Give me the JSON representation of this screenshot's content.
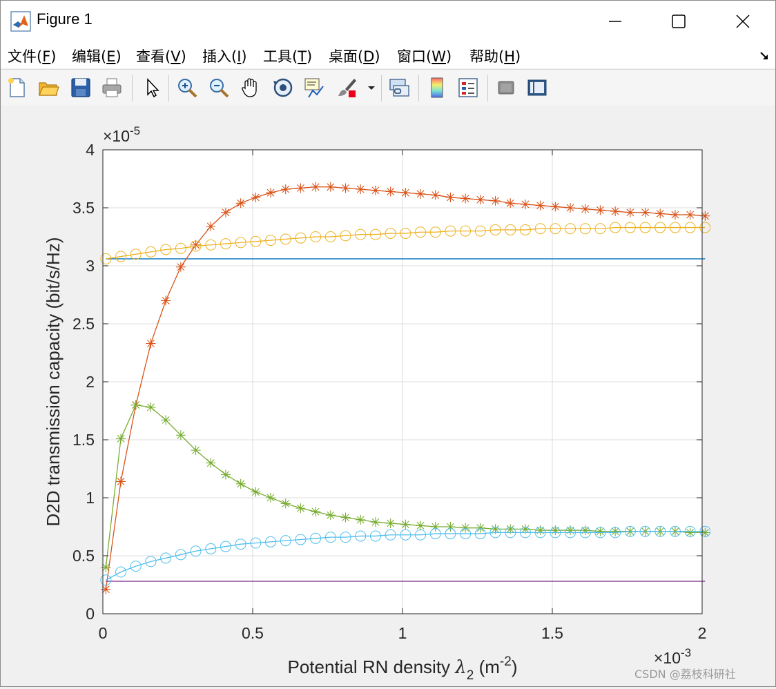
{
  "window": {
    "title": "Figure 1"
  },
  "menu": {
    "items": [
      {
        "label": "文件(",
        "key": "F",
        "tail": ")"
      },
      {
        "label": "编辑(",
        "key": "E",
        "tail": ")"
      },
      {
        "label": "查看(",
        "key": "V",
        "tail": ")"
      },
      {
        "label": "插入(",
        "key": "I",
        "tail": ")"
      },
      {
        "label": "工具(",
        "key": "T",
        "tail": ")"
      },
      {
        "label": "桌面(",
        "key": "D",
        "tail": ")"
      },
      {
        "label": "窗口(",
        "key": "W",
        "tail": ")"
      },
      {
        "label": "帮助(",
        "key": "H",
        "tail": ")"
      }
    ]
  },
  "toolbar": {
    "icons": [
      "new-figure-icon",
      "open-file-icon",
      "save-icon",
      "print-icon",
      "select-arrow-icon",
      "zoom-in-icon",
      "zoom-out-icon",
      "pan-hand-icon",
      "rotate-3d-icon",
      "data-cursor-icon",
      "brush-icon",
      "brush-dropdown-icon",
      "link-plot-icon",
      "colorbar-icon",
      "legend-icon",
      "hide-plot-tools-icon",
      "show-plot-tools-icon"
    ]
  },
  "watermark": "CSDN @荔枝科研社",
  "chart_data": {
    "type": "line",
    "xlabel": "Potential RN density λ2 (m-2)",
    "xlabel_parts": {
      "main": "Potential RN density ",
      "sym": "λ",
      "sub": "2",
      "unit_open": " (m",
      "sup": "-2",
      "unit_close": ")"
    },
    "ylabel": "D2D transmission capacity (bit/s/Hz)",
    "y_exponent": "×10-5",
    "y_exponent_parts": {
      "base": "×10",
      "sup": "-5"
    },
    "x_exponent": "×10-3",
    "x_exponent_parts": {
      "base": "×10",
      "sup": "-3"
    },
    "xlim": [
      0,
      2
    ],
    "ylim": [
      0,
      4
    ],
    "xticks": [
      "0",
      "0.5",
      "1",
      "1.5",
      "2"
    ],
    "yticks": [
      "0",
      "0.5",
      "1",
      "1.5",
      "2",
      "2.5",
      "3",
      "3.5",
      "4"
    ],
    "grid": true,
    "x": [
      0.01,
      0.06,
      0.11,
      0.16,
      0.21,
      0.26,
      0.31,
      0.36,
      0.41,
      0.46,
      0.51,
      0.56,
      0.61,
      0.66,
      0.71,
      0.76,
      0.81,
      0.86,
      0.91,
      0.96,
      1.01,
      1.06,
      1.11,
      1.16,
      1.21,
      1.26,
      1.31,
      1.36,
      1.41,
      1.46,
      1.51,
      1.56,
      1.61,
      1.66,
      1.71,
      1.76,
      1.81,
      1.86,
      1.91,
      1.96,
      2.01
    ],
    "series": [
      {
        "color": "#0072bd",
        "marker": "none",
        "y": [
          3.06,
          3.06,
          3.06,
          3.06,
          3.06,
          3.06,
          3.06,
          3.06,
          3.06,
          3.06,
          3.06,
          3.06,
          3.06,
          3.06,
          3.06,
          3.06,
          3.06,
          3.06,
          3.06,
          3.06,
          3.06,
          3.06,
          3.06,
          3.06,
          3.06,
          3.06,
          3.06,
          3.06,
          3.06,
          3.06,
          3.06,
          3.06,
          3.06,
          3.06,
          3.06,
          3.06,
          3.06,
          3.06,
          3.06,
          3.06,
          3.06
        ]
      },
      {
        "color": "#d95319",
        "marker": "star",
        "y": [
          0.21,
          1.14,
          1.8,
          2.33,
          2.7,
          2.99,
          3.18,
          3.34,
          3.46,
          3.54,
          3.59,
          3.63,
          3.66,
          3.67,
          3.68,
          3.68,
          3.67,
          3.66,
          3.65,
          3.64,
          3.63,
          3.62,
          3.61,
          3.59,
          3.58,
          3.57,
          3.56,
          3.54,
          3.53,
          3.52,
          3.51,
          3.5,
          3.49,
          3.48,
          3.47,
          3.46,
          3.46,
          3.45,
          3.44,
          3.44,
          3.43
        ]
      },
      {
        "color": "#edb120",
        "marker": "circle",
        "y": [
          3.06,
          3.08,
          3.1,
          3.12,
          3.14,
          3.15,
          3.17,
          3.18,
          3.19,
          3.2,
          3.21,
          3.22,
          3.23,
          3.24,
          3.25,
          3.25,
          3.26,
          3.27,
          3.27,
          3.28,
          3.28,
          3.29,
          3.29,
          3.3,
          3.3,
          3.3,
          3.31,
          3.31,
          3.31,
          3.32,
          3.32,
          3.32,
          3.32,
          3.32,
          3.33,
          3.33,
          3.33,
          3.33,
          3.33,
          3.33,
          3.33
        ]
      },
      {
        "color": "#7e2f8e",
        "marker": "none",
        "y": [
          0.28,
          0.28,
          0.28,
          0.28,
          0.28,
          0.28,
          0.28,
          0.28,
          0.28,
          0.28,
          0.28,
          0.28,
          0.28,
          0.28,
          0.28,
          0.28,
          0.28,
          0.28,
          0.28,
          0.28,
          0.28,
          0.28,
          0.28,
          0.28,
          0.28,
          0.28,
          0.28,
          0.28,
          0.28,
          0.28,
          0.28,
          0.28,
          0.28,
          0.28,
          0.28,
          0.28,
          0.28,
          0.28,
          0.28,
          0.28,
          0.28
        ]
      },
      {
        "color": "#77ac30",
        "marker": "star",
        "y": [
          0.4,
          1.51,
          1.8,
          1.78,
          1.67,
          1.54,
          1.41,
          1.3,
          1.2,
          1.12,
          1.05,
          1.0,
          0.95,
          0.91,
          0.88,
          0.85,
          0.83,
          0.81,
          0.79,
          0.78,
          0.77,
          0.76,
          0.75,
          0.75,
          0.74,
          0.74,
          0.73,
          0.73,
          0.73,
          0.72,
          0.72,
          0.72,
          0.72,
          0.71,
          0.71,
          0.71,
          0.71,
          0.71,
          0.71,
          0.7,
          0.7
        ]
      },
      {
        "color": "#4dbeee",
        "marker": "circle",
        "y": [
          0.29,
          0.36,
          0.41,
          0.45,
          0.48,
          0.51,
          0.54,
          0.56,
          0.58,
          0.6,
          0.61,
          0.62,
          0.63,
          0.64,
          0.65,
          0.66,
          0.66,
          0.67,
          0.67,
          0.68,
          0.68,
          0.68,
          0.69,
          0.69,
          0.69,
          0.69,
          0.7,
          0.7,
          0.7,
          0.7,
          0.7,
          0.7,
          0.7,
          0.7,
          0.7,
          0.71,
          0.71,
          0.71,
          0.71,
          0.71,
          0.71
        ]
      }
    ]
  }
}
